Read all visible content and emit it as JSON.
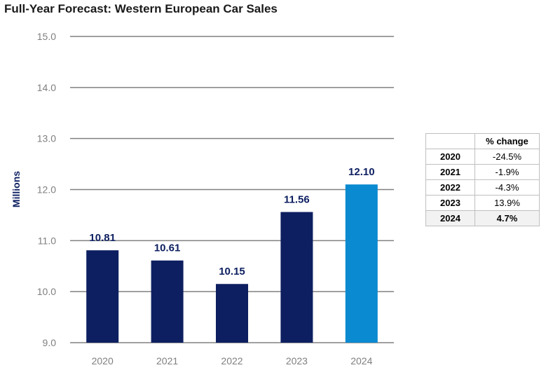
{
  "chart_data": {
    "type": "bar",
    "title": "Full-Year Forecast: Western European Car Sales",
    "ylabel": "Millions",
    "xlabel": "",
    "categories": [
      "2020",
      "2021",
      "2022",
      "2023",
      "2024"
    ],
    "values": [
      10.81,
      10.61,
      10.15,
      11.56,
      12.1
    ],
    "data_labels": [
      "10.81",
      "10.61",
      "10.15",
      "11.56",
      "12.10"
    ],
    "ylim": [
      9.0,
      15.0
    ],
    "yticks": [
      "9.0",
      "10.0",
      "11.0",
      "12.0",
      "13.0",
      "14.0",
      "15.0"
    ],
    "grid": true,
    "colors": {
      "bar": "#0d1f60",
      "highlight_bar": "#0a8ad0",
      "grid": "#808080"
    },
    "highlight_index": 4
  },
  "table": {
    "header": "% change",
    "rows": [
      {
        "year": "2020",
        "pct": "-24.5%"
      },
      {
        "year": "2021",
        "pct": "-1.9%"
      },
      {
        "year": "2022",
        "pct": "-4.3%"
      },
      {
        "year": "2023",
        "pct": "13.9%"
      },
      {
        "year": "2024",
        "pct": "4.7%"
      }
    ]
  }
}
